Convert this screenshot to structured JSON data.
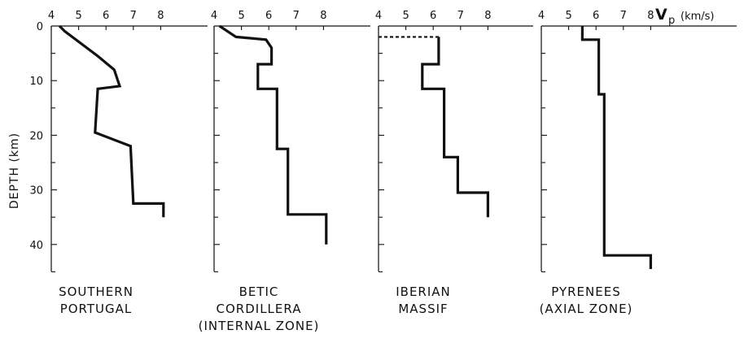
{
  "chart_data": {
    "type": "line",
    "ylabel": "DEPTH (km)",
    "xlabel_main": "V",
    "xlabel_sub": "p",
    "xlabel_unit": "(km/s)",
    "x_ticks": [
      4,
      5,
      6,
      7,
      8
    ],
    "x_range": [
      4,
      8.3
    ],
    "y_ticks": [
      0,
      10,
      20,
      30,
      40
    ],
    "y_range": [
      0,
      45
    ],
    "y_direction": "down",
    "panels": [
      {
        "name_lines": [
          "SOUTHERN",
          "PORTUGAL"
        ],
        "profile": [
          [
            4.3,
            0
          ],
          [
            4.5,
            1
          ],
          [
            5.7,
            5.5
          ],
          [
            6.3,
            8
          ],
          [
            6.5,
            11
          ],
          [
            5.7,
            11.5
          ],
          [
            5.6,
            19.5
          ],
          [
            6.9,
            22
          ],
          [
            7.0,
            32.5
          ],
          [
            8.1,
            32.5
          ],
          [
            8.1,
            35
          ]
        ],
        "dashed": []
      },
      {
        "name_lines": [
          "BETIC",
          "CORDILLERA",
          "(INTERNAL ZONE)"
        ],
        "profile": [
          [
            4.2,
            0
          ],
          [
            4.8,
            2
          ],
          [
            5.9,
            2.5
          ],
          [
            6.1,
            4
          ],
          [
            6.1,
            7
          ],
          [
            5.6,
            7
          ],
          [
            5.6,
            11.5
          ],
          [
            6.3,
            11.5
          ],
          [
            6.3,
            22.5
          ],
          [
            6.7,
            22.5
          ],
          [
            6.7,
            34.5
          ],
          [
            8.1,
            34.5
          ],
          [
            8.1,
            40
          ]
        ],
        "dashed": []
      },
      {
        "name_lines": [
          "IBERIAN",
          "MASSIF"
        ],
        "profile": [
          [
            6.2,
            2
          ],
          [
            6.2,
            7
          ],
          [
            5.6,
            7
          ],
          [
            5.6,
            11.5
          ],
          [
            6.4,
            11.5
          ],
          [
            6.4,
            24
          ],
          [
            6.9,
            24
          ],
          [
            6.9,
            30.5
          ],
          [
            8.0,
            30.5
          ],
          [
            8.0,
            35
          ]
        ],
        "dashed": [
          [
            [
              4.0,
              2
            ],
            [
              6.2,
              2
            ]
          ]
        ]
      },
      {
        "name_lines": [
          "PYRENEES",
          "(AXIAL ZONE)"
        ],
        "profile": [
          [
            5.5,
            0
          ],
          [
            5.5,
            2.5
          ],
          [
            6.1,
            2.5
          ],
          [
            6.1,
            12.5
          ],
          [
            6.3,
            12.5
          ],
          [
            6.3,
            31
          ],
          [
            6.3,
            42
          ],
          [
            8.0,
            42
          ],
          [
            8.0,
            44.5
          ]
        ],
        "dashed": [
          [
            [
              6.3,
              31
            ],
            [
              6.3,
              42
            ]
          ]
        ]
      }
    ]
  }
}
